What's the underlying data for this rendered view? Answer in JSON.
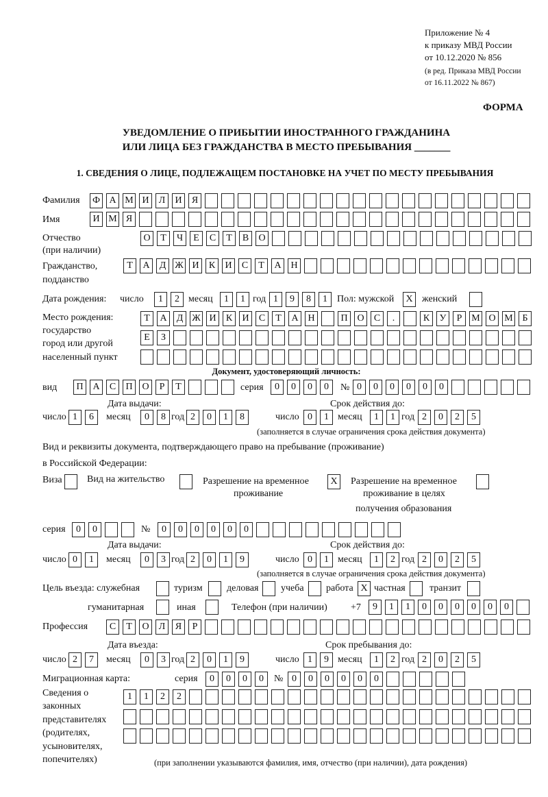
{
  "header": {
    "l1": "Приложение № 4",
    "l2": "к приказу МВД России",
    "l3": "от 10.12.2020 № 856",
    "l4": "(в ред. Приказа МВД России",
    "l5": "от 16.11.2022 № 867)",
    "forma": "ФОРМА"
  },
  "title": {
    "l1": "УВЕДОМЛЕНИЕ О ПРИБЫТИИ ИНОСТРАННОГО ГРАЖДАНИНА",
    "l2": "ИЛИ ЛИЦА БЕЗ ГРАЖДАНСТВА В МЕСТО ПРЕБЫВАНИЯ _______"
  },
  "section1": "1. СВЕДЕНИЯ О ЛИЦЕ, ПОДЛЕЖАЩЕМ ПОСТАНОВКЕ НА УЧЕТ ПО МЕСТУ ПРЕБЫВАНИЯ",
  "labels": {
    "surname": "Фамилия",
    "name": "Имя",
    "patronymic": "Отчество",
    "patronymic2": "(при наличии)",
    "citizenship": "Гражданство,",
    "citizenship2": "подданство",
    "dob": "Дата рождения:",
    "day": "число",
    "month": "месяц",
    "year": "год",
    "sex_m": "Пол: мужской",
    "sex_f": "женский",
    "pob1": "Место рождения:",
    "pob2": "государство",
    "pob3": "город или другой",
    "pob4": "населенный пункт",
    "doc_heading": "Документ, удостоверяющий личность:",
    "kind": "вид",
    "series": "серия",
    "number": "№",
    "issued": "Дата выдачи:",
    "valid": "Срок действия до:",
    "valid_note": "(заполняется в случае ограничения срока действия документа)",
    "right_doc1": "Вид и реквизиты документа, подтверждающего право на пребывание (проживание)",
    "right_doc2": "в Российской Федерации:",
    "visa": "Виза",
    "residence": "Вид на жительство",
    "trp1": "Разрешение на временное",
    "trp2": "проживание",
    "trpe1": "Разрешение на временное",
    "trpe2": "проживание в целях",
    "trpe3": "получения образования",
    "purpose": "Цель въезда: служебная",
    "tourism": "туризм",
    "business": "деловая",
    "study": "учеба",
    "work": "работа",
    "private": "частная",
    "transit": "транзит",
    "humanitarian": "гуманитарная",
    "other": "иная",
    "phone": "Телефон (при наличии)",
    "phone_prefix": "+7",
    "profession": "Профессия",
    "entry_date": "Дата въезда:",
    "stay_until": "Срок пребывания до:",
    "migration_card": "Миграционная карта:",
    "rep1": "Сведения о",
    "rep2": "законных",
    "rep3": "представителях",
    "rep4": "(родителях,",
    "rep5": "усыновителях,",
    "rep6": "попечителях)",
    "rep_note": "(при заполнении указываются фамилия, имя, отчество (при наличии), дата рождения)"
  },
  "fields": {
    "surname": [
      "Ф",
      "А",
      "М",
      "И",
      "Л",
      "И",
      "Я",
      "",
      "",
      "",
      "",
      "",
      "",
      "",
      "",
      "",
      "",
      "",
      "",
      "",
      "",
      "",
      "",
      "",
      "",
      "",
      ""
    ],
    "name": [
      "И",
      "М",
      "Я",
      "",
      "",
      "",
      "",
      "",
      "",
      "",
      "",
      "",
      "",
      "",
      "",
      "",
      "",
      "",
      "",
      "",
      "",
      "",
      "",
      "",
      "",
      "",
      ""
    ],
    "patronymic": [
      "О",
      "Т",
      "Ч",
      "Е",
      "С",
      "Т",
      "В",
      "О",
      "",
      "",
      "",
      "",
      "",
      "",
      "",
      "",
      "",
      "",
      "",
      "",
      "",
      "",
      "",
      ""
    ],
    "citizenship": [
      "Т",
      "А",
      "Д",
      "Ж",
      "И",
      "К",
      "И",
      "С",
      "Т",
      "А",
      "Н",
      "",
      "",
      "",
      "",
      "",
      "",
      "",
      "",
      "",
      "",
      "",
      "",
      "",
      ""
    ],
    "dob_day": [
      "1",
      "2"
    ],
    "dob_month": [
      "1",
      "1"
    ],
    "dob_year": [
      "1",
      "9",
      "8",
      "1"
    ],
    "sex_m": [
      "X"
    ],
    "sex_f": [
      ""
    ],
    "pob1": [
      "Т",
      "А",
      "Д",
      "Ж",
      "И",
      "К",
      "И",
      "С",
      "Т",
      "А",
      "Н",
      "",
      "П",
      "О",
      "С",
      ".",
      "",
      "К",
      "У",
      "Р",
      "М",
      "О",
      "М",
      "Б"
    ],
    "pob2": [
      "Е",
      "З",
      "",
      "",
      "",
      "",
      "",
      "",
      "",
      "",
      "",
      "",
      "",
      "",
      "",
      "",
      "",
      "",
      "",
      "",
      "",
      "",
      "",
      ""
    ],
    "pob3": [
      "",
      "",
      "",
      "",
      "",
      "",
      "",
      "",
      "",
      "",
      "",
      "",
      "",
      "",
      "",
      "",
      "",
      "",
      "",
      "",
      "",
      "",
      "",
      ""
    ],
    "doc_kind": [
      "П",
      "А",
      "С",
      "П",
      "О",
      "Р",
      "Т",
      "",
      "",
      ""
    ],
    "doc_series": [
      "0",
      "0",
      "0",
      "0"
    ],
    "doc_number": [
      "0",
      "0",
      "0",
      "0",
      "0",
      "0",
      "",
      "",
      "",
      "",
      ""
    ],
    "doc_issue_day": [
      "1",
      "6"
    ],
    "doc_issue_month": [
      "0",
      "8"
    ],
    "doc_issue_year": [
      "2",
      "0",
      "1",
      "8"
    ],
    "doc_valid_day": [
      "0",
      "1"
    ],
    "doc_valid_month": [
      "1",
      "1"
    ],
    "doc_valid_year": [
      "2",
      "0",
      "2",
      "5"
    ],
    "visa": [
      ""
    ],
    "residence": [
      ""
    ],
    "trp": [
      "X"
    ],
    "trpe": [
      ""
    ],
    "rd_series": [
      "0",
      "0",
      "",
      ""
    ],
    "rd_number": [
      "0",
      "0",
      "0",
      "0",
      "0",
      "0",
      "",
      "",
      "",
      "",
      "",
      "",
      "",
      "",
      ""
    ],
    "rd_issue_day": [
      "0",
      "1"
    ],
    "rd_issue_month": [
      "0",
      "3"
    ],
    "rd_issue_year": [
      "2",
      "0",
      "1",
      "9"
    ],
    "rd_valid_day": [
      "0",
      "1"
    ],
    "rd_valid_month": [
      "1",
      "2"
    ],
    "rd_valid_year": [
      "2",
      "0",
      "2",
      "5"
    ],
    "p_official": [
      ""
    ],
    "p_tourism": [
      ""
    ],
    "p_business": [
      ""
    ],
    "p_study": [
      ""
    ],
    "p_work": [
      "X"
    ],
    "p_private": [
      ""
    ],
    "p_transit": [
      ""
    ],
    "p_humanitarian": [
      ""
    ],
    "p_other": [
      ""
    ],
    "phone": [
      "9",
      "1",
      "1",
      "0",
      "0",
      "0",
      "0",
      "0",
      "0",
      ""
    ],
    "profession": [
      "С",
      "Т",
      "О",
      "Л",
      "Я",
      "Р",
      "",
      "",
      "",
      "",
      "",
      "",
      "",
      "",
      "",
      "",
      "",
      "",
      "",
      "",
      "",
      "",
      "",
      "",
      "",
      ""
    ],
    "entry_day": [
      "2",
      "7"
    ],
    "entry_month": [
      "0",
      "3"
    ],
    "entry_year": [
      "2",
      "0",
      "1",
      "9"
    ],
    "stay_day": [
      "1",
      "9"
    ],
    "stay_month": [
      "1",
      "2"
    ],
    "stay_year": [
      "2",
      "0",
      "2",
      "5"
    ],
    "mc_series": [
      "0",
      "0",
      "0",
      "0"
    ],
    "mc_number": [
      "0",
      "0",
      "0",
      "0",
      "0",
      "0",
      "",
      "",
      "",
      "",
      ""
    ],
    "rep1": [
      "1",
      "1",
      "2",
      "2",
      "",
      "",
      "",
      "",
      "",
      "",
      "",
      "",
      "",
      "",
      "",
      "",
      "",
      "",
      "",
      "",
      "",
      "",
      "",
      "",
      ""
    ],
    "rep2": [
      "",
      "",
      "",
      "",
      "",
      "",
      "",
      "",
      "",
      "",
      "",
      "",
      "",
      "",
      "",
      "",
      "",
      "",
      "",
      "",
      "",
      "",
      "",
      "",
      ""
    ],
    "rep3": [
      "",
      "",
      "",
      "",
      "",
      "",
      "",
      "",
      "",
      "",
      "",
      "",
      "",
      "",
      "",
      "",
      "",
      "",
      "",
      "",
      "",
      "",
      "",
      "",
      ""
    ]
  }
}
